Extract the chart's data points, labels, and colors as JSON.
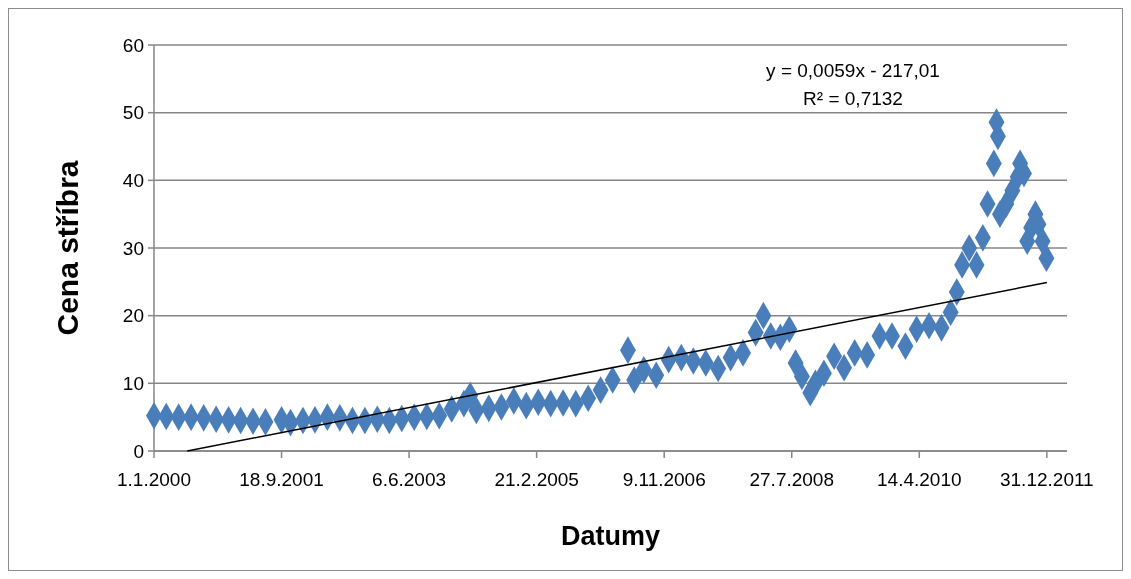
{
  "chart_data": {
    "type": "scatter",
    "xlabel": "Datumy",
    "ylabel": "Cena stříbra",
    "marker": "diamond",
    "grid": "y",
    "xlim": [
      "2000-01-01",
      "2012-04-08"
    ],
    "xticks": [
      {
        "value": "2000-01-01",
        "label": "1.1.2000"
      },
      {
        "value": "2001-09-18",
        "label": "18.9.2001"
      },
      {
        "value": "2003-06-06",
        "label": "6.6.2003"
      },
      {
        "value": "2005-02-21",
        "label": "21.2.2005"
      },
      {
        "value": "2006-11-09",
        "label": "9.11.2006"
      },
      {
        "value": "2008-07-27",
        "label": "27.7.2008"
      },
      {
        "value": "2010-04-14",
        "label": "14.4.2010"
      },
      {
        "value": "2011-12-31",
        "label": "31.12.2011"
      }
    ],
    "ylim": [
      0,
      60
    ],
    "yticks": [
      0,
      10,
      20,
      30,
      40,
      50,
      60
    ],
    "annotations": [
      "y = 0,0059x - 217,01",
      "R² = 0,7132"
    ],
    "series": [
      {
        "color": "#4a7ebb",
        "x": [
          "2000-01-01",
          "2000-03-01",
          "2000-05-01",
          "2000-07-01",
          "2000-09-01",
          "2000-11-01",
          "2001-01-01",
          "2001-03-01",
          "2001-05-01",
          "2001-07-01",
          "2001-09-18",
          "2001-11-01",
          "2002-01-01",
          "2002-03-01",
          "2002-05-01",
          "2002-07-01",
          "2002-09-01",
          "2002-11-01",
          "2003-01-01",
          "2003-03-01",
          "2003-05-01",
          "2003-07-01",
          "2003-09-01",
          "2003-11-01",
          "2004-01-01",
          "2004-03-01",
          "2004-04-01",
          "2004-05-01",
          "2004-07-01",
          "2004-09-01",
          "2004-11-01",
          "2005-01-01",
          "2005-03-01",
          "2005-05-01",
          "2005-07-01",
          "2005-09-01",
          "2005-11-01",
          "2006-01-01",
          "2006-03-01",
          "2006-05-15",
          "2006-06-15",
          "2006-08-01",
          "2006-10-01",
          "2006-12-01",
          "2007-02-01",
          "2007-04-01",
          "2007-06-01",
          "2007-08-01",
          "2007-10-01",
          "2007-12-01",
          "2008-02-01",
          "2008-03-10",
          "2008-04-15",
          "2008-06-01",
          "2008-07-15",
          "2008-08-15",
          "2008-09-15",
          "2008-10-26",
          "2008-11-20",
          "2009-01-01",
          "2009-02-20",
          "2009-04-10",
          "2009-06-01",
          "2009-08-01",
          "2009-10-01",
          "2009-12-01",
          "2010-02-05",
          "2010-04-01",
          "2010-06-01",
          "2010-08-01",
          "2010-09-15",
          "2010-10-15",
          "2010-11-10",
          "2010-12-15",
          "2011-01-20",
          "2011-02-20",
          "2011-03-15",
          "2011-04-15",
          "2011-04-28",
          "2011-05-05",
          "2011-05-15",
          "2011-06-15",
          "2011-07-15",
          "2011-08-10",
          "2011-08-22",
          "2011-09-10",
          "2011-09-26",
          "2011-10-15",
          "2011-11-05",
          "2011-11-20",
          "2011-12-10",
          "2011-12-29"
        ],
        "values": [
          5.2,
          5.1,
          5.0,
          5.0,
          4.9,
          4.7,
          4.6,
          4.5,
          4.4,
          4.3,
          4.6,
          4.2,
          4.5,
          4.6,
          5.0,
          4.9,
          4.5,
          4.5,
          4.7,
          4.5,
          4.8,
          5.0,
          5.1,
          5.2,
          6.2,
          7.0,
          8.2,
          6.0,
          6.3,
          6.5,
          7.4,
          6.7,
          7.2,
          7.0,
          7.1,
          7.0,
          7.8,
          9.0,
          10.5,
          14.9,
          10.5,
          12.0,
          11.2,
          13.5,
          13.8,
          13.3,
          13.0,
          12.2,
          13.8,
          14.5,
          17.5,
          20.0,
          17.0,
          16.8,
          18.0,
          13.0,
          11.0,
          8.6,
          10.0,
          11.5,
          14.0,
          12.3,
          14.5,
          14.2,
          17.0,
          17.0,
          15.5,
          18.0,
          18.5,
          18.2,
          20.5,
          23.5,
          27.5,
          30.0,
          27.5,
          31.5,
          36.5,
          42.5,
          48.6,
          46.5,
          35.0,
          36.5,
          38.5,
          40.5,
          42.5,
          41.0,
          31.0,
          33.0,
          35.0,
          33.5,
          31.0,
          28.5
        ]
      },
      {
        "type": "line",
        "color": "#000000",
        "marker": "none",
        "x": [
          "2000-06-12",
          "2011-12-31"
        ],
        "values": [
          0,
          24.9
        ]
      }
    ]
  }
}
